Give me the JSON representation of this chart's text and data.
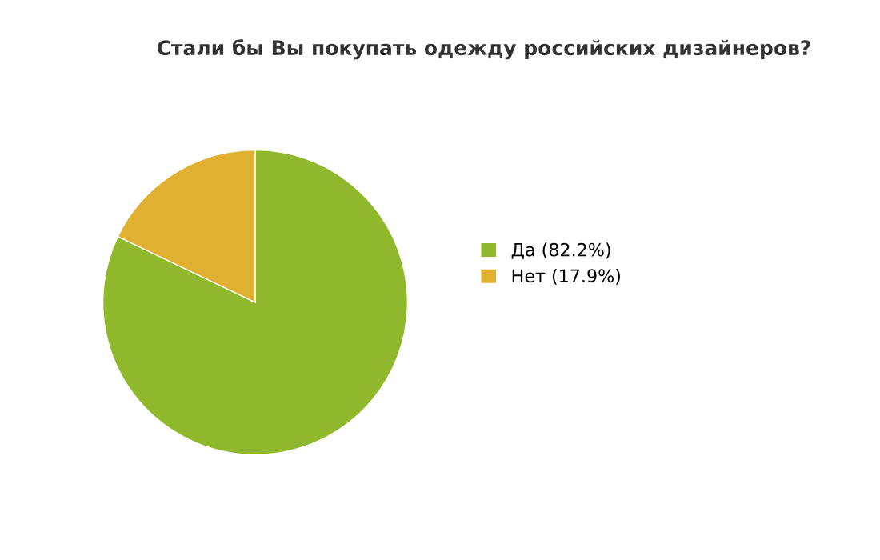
{
  "chart_data": {
    "type": "pie",
    "title": "Стали бы Вы покупать одежду российских дизайнеров?",
    "categories": [
      "Да (82.2%)",
      "Нет (17.9%)"
    ],
    "values": [
      82.2,
      17.9
    ],
    "colors": [
      "#8fb82c",
      "#e0b030"
    ],
    "legend": "right"
  }
}
